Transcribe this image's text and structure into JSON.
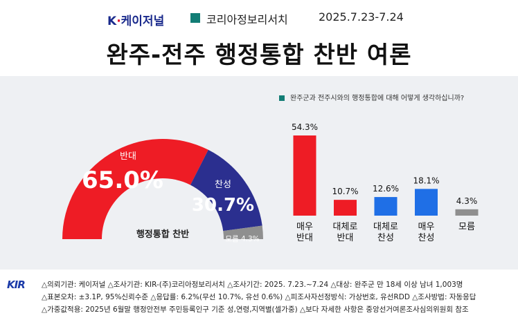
{
  "header": {
    "brand_prefix": "K",
    "brand_dot": "·",
    "brand_name": "케이저널",
    "org": "코리아정보리서치",
    "period": "2025.7.23-7.24"
  },
  "title": "완주-전주 행정통합 찬반 여론",
  "question": "완주군과 전주시와의 행정통합에 대해 어떻게 생각하십니까?",
  "chart_data": [
    {
      "type": "pie",
      "subtype": "semi-donut",
      "center_label": "행정통합 찬반",
      "slices": [
        {
          "label": "반대",
          "value": 65.0,
          "display": "65.0%",
          "color": "#ee1c25"
        },
        {
          "label": "찬성",
          "value": 30.7,
          "display": "30.7%",
          "color": "#2b2f8f"
        },
        {
          "label": "모름",
          "value": 4.3,
          "display": "모름 4.3%",
          "color": "#8f8f8f"
        }
      ]
    },
    {
      "type": "bar",
      "categories": [
        [
          "매우",
          "반대"
        ],
        [
          "대체로",
          "반대"
        ],
        [
          "대체로",
          "찬성"
        ],
        [
          "매우",
          "찬성"
        ],
        [
          "모름"
        ]
      ],
      "values": [
        54.3,
        10.7,
        12.6,
        18.1,
        4.3
      ],
      "value_labels": [
        "54.3%",
        "10.7%",
        "12.6%",
        "18.1%",
        "4.3%"
      ],
      "colors": [
        "#ee1c25",
        "#ee1c25",
        "#1f6fe6",
        "#1f6fe6",
        "#8f8f8f"
      ],
      "ylim": [
        0,
        60
      ]
    }
  ],
  "footer": {
    "logo": "KIR",
    "lines": [
      "△의뢰기관: 케이저널  △조사기관: KIR-(주)코리아정보리서치  △조사기간: 2025. 7.23.~7.24  △대상: 완주군 만 18세 이상 남녀 1,003명",
      "△표본오차: ±3.1P, 95%신뢰수준  △응답률: 6.2%(무선 10.7%, 유선 0.6%)  △피조사자선정방식: 가상번호, 유선RDD  △조사방법: 자동응답",
      "△가중값적용: 2025년 6월말 행정안전부 주민등록인구 기준 성,연령,지역별(셀가중)  △보다 자세한 사항은 중앙선거여론조사심의위원회 참조"
    ]
  }
}
